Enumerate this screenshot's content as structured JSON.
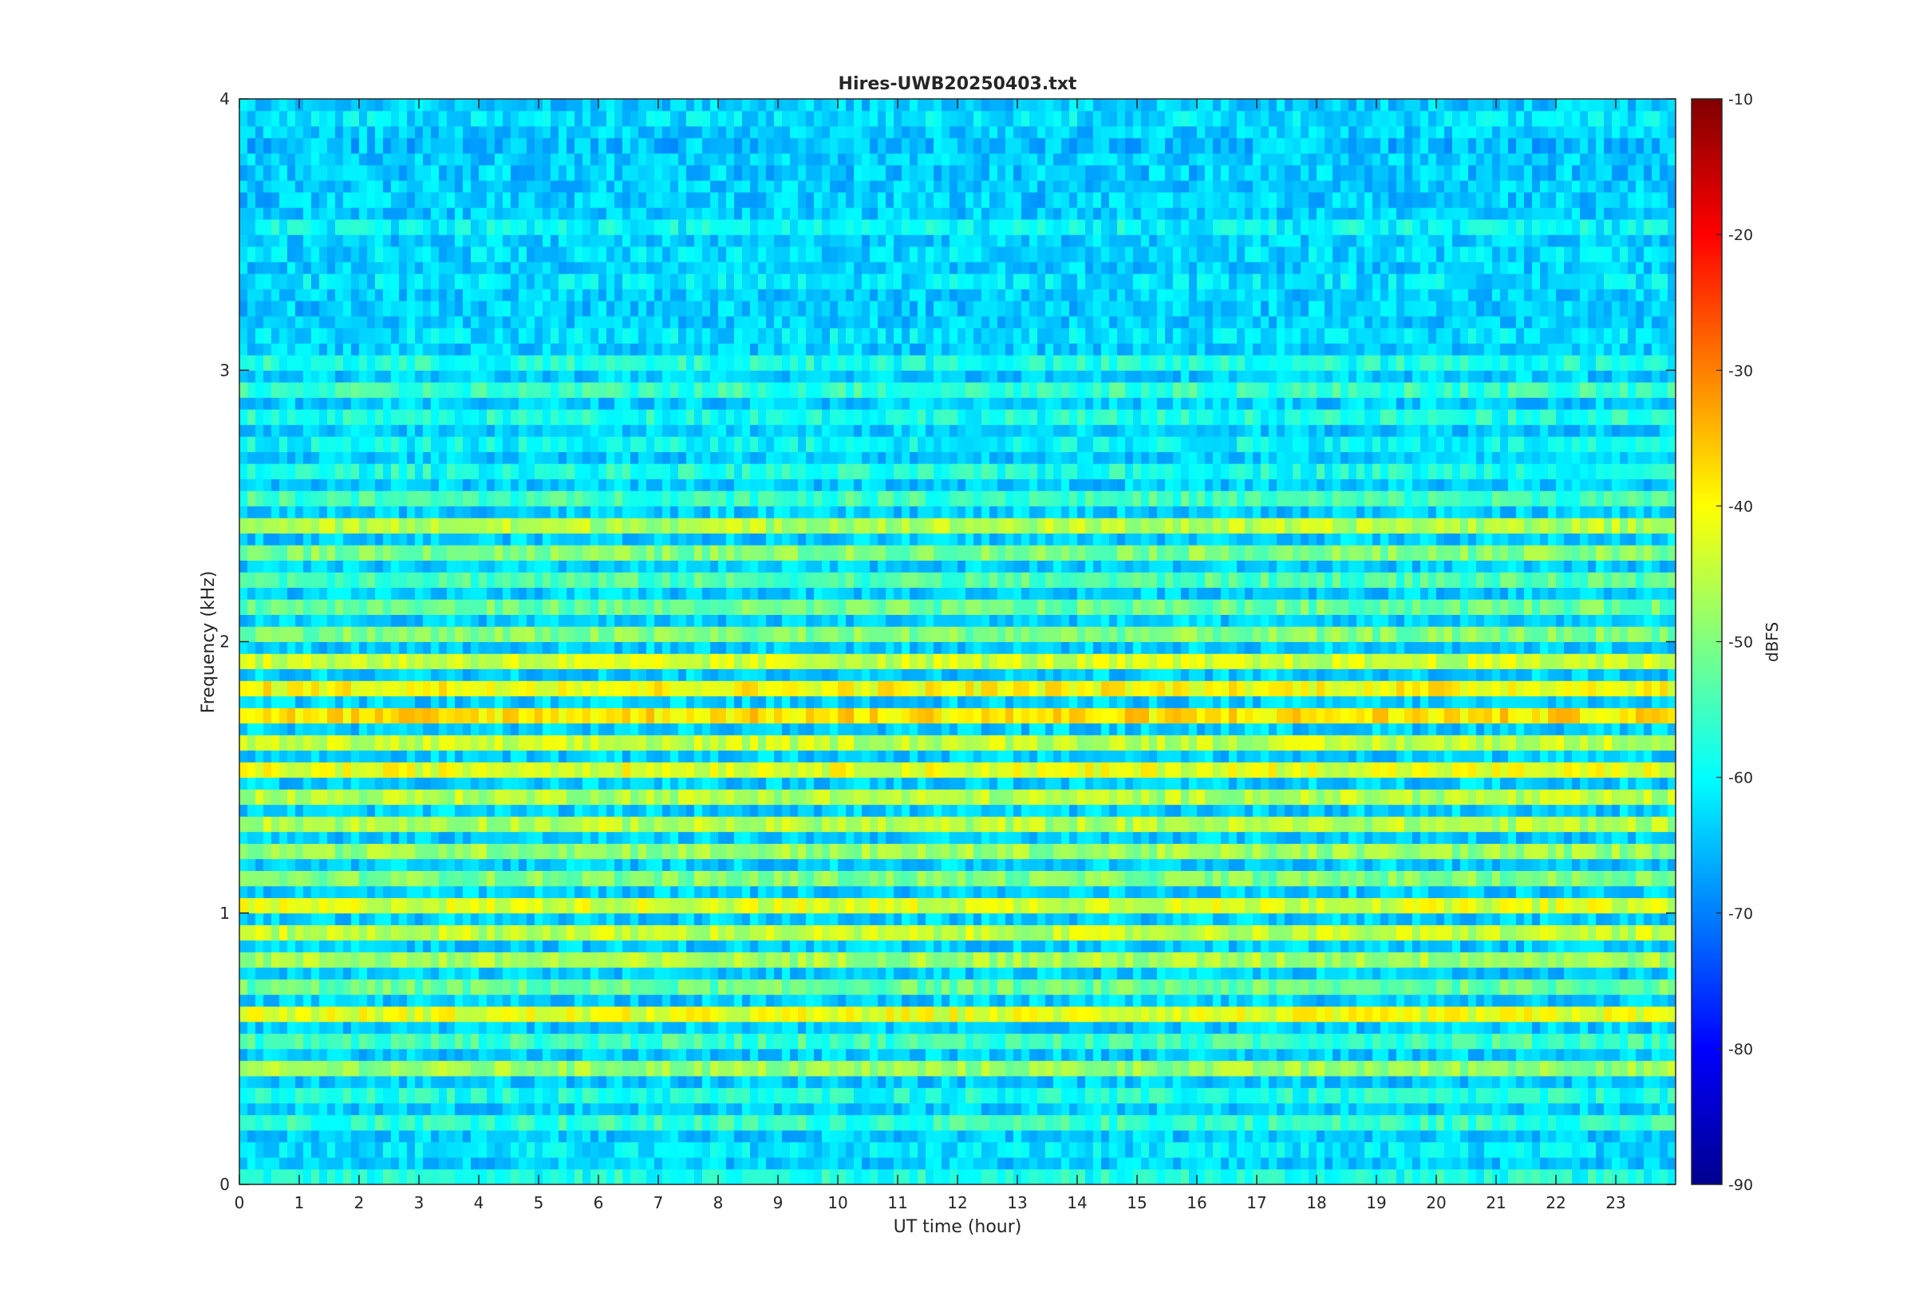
{
  "chart_data": {
    "type": "heatmap",
    "title": "Hires-UWB20250403.txt",
    "xlabel": "UT time (hour)",
    "ylabel": "Frequency (kHz)",
    "colorbar_label": "dBFS",
    "colormap": "jet",
    "xlim": [
      0,
      24
    ],
    "ylim": [
      0,
      4
    ],
    "clim": [
      -90,
      -10
    ],
    "x_ticks": [
      0,
      1,
      2,
      3,
      4,
      5,
      6,
      7,
      8,
      9,
      10,
      11,
      12,
      13,
      14,
      15,
      16,
      17,
      18,
      19,
      20,
      21,
      22,
      23
    ],
    "y_ticks": [
      0,
      1,
      2,
      3,
      4
    ],
    "colorbar_ticks": [
      -90,
      -80,
      -70,
      -60,
      -50,
      -40,
      -30,
      -20,
      -10
    ],
    "band_step_khz": 0.1,
    "band_freqs_khz": [
      0.05,
      0.15,
      0.25,
      0.35,
      0.45,
      0.55,
      0.65,
      0.75,
      0.85,
      0.95,
      1.05,
      1.15,
      1.25,
      1.35,
      1.45,
      1.55,
      1.65,
      1.75,
      1.85,
      1.95,
      2.05,
      2.15,
      2.25,
      2.35,
      2.45,
      2.55,
      2.65,
      2.75,
      2.85,
      2.95,
      3.05,
      3.15,
      3.25,
      3.35,
      3.45,
      3.55,
      3.65,
      3.75,
      3.85,
      3.95
    ],
    "band_levels_dbfs": [
      -58,
      -62,
      -56,
      -58,
      -48,
      -55,
      -42,
      -52,
      -47,
      -45,
      -43,
      -50,
      -48,
      -46,
      -46,
      -42,
      -45,
      -38,
      -40,
      -44,
      -50,
      -52,
      -54,
      -50,
      -46,
      -55,
      -58,
      -60,
      -58,
      -56,
      -58,
      -62,
      -64,
      -62,
      -63,
      -60,
      -64,
      -64,
      -65,
      -62
    ],
    "background_dbfs": -64,
    "notes_hours": {
      "strong_band_hours": [
        [
          0,
          24
        ]
      ]
    }
  }
}
